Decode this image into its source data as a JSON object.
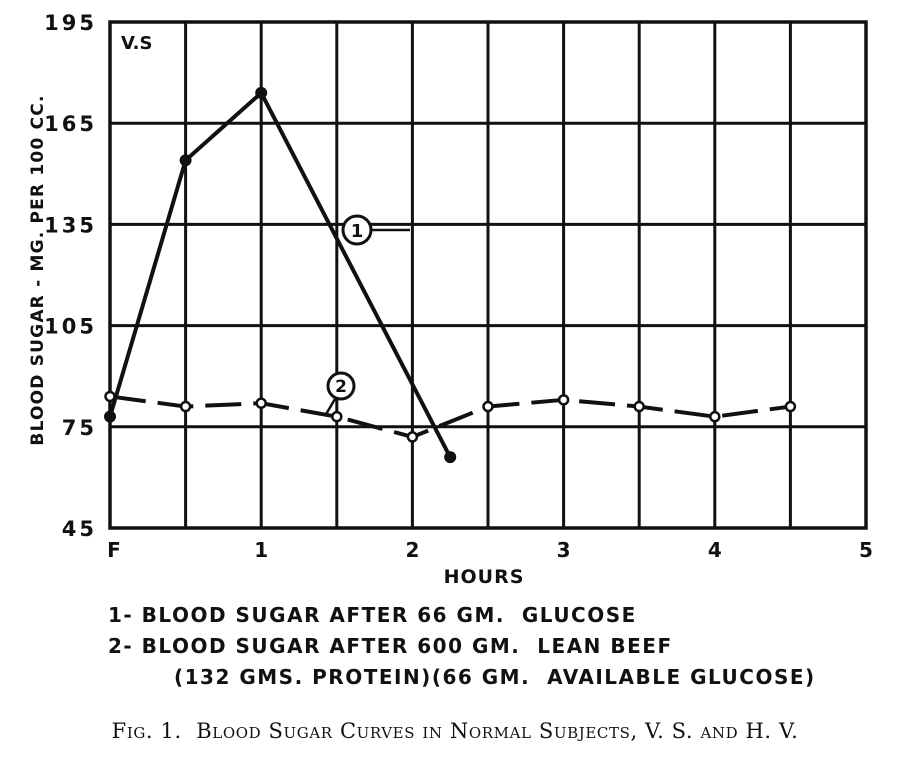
{
  "chart_data": {
    "type": "line",
    "panel_label": "V.S",
    "xlabel": "HOURS",
    "ylabel": "BLOOD SUGAR - MG. PER 100 CC.",
    "x_tick_labels": [
      "F",
      "1",
      "2",
      "3",
      "4",
      "5"
    ],
    "x_ticks": [
      0,
      1,
      2,
      3,
      4,
      5
    ],
    "xlim": [
      0,
      5
    ],
    "y_tick_labels": [
      "195",
      "165",
      "135",
      "105",
      "75",
      "45"
    ],
    "y_ticks": [
      195,
      165,
      135,
      105,
      75,
      45
    ],
    "ylim": [
      45,
      195
    ],
    "grid": true,
    "series": [
      {
        "tag": "1",
        "style": "solid",
        "marker": "filled",
        "x": [
          0,
          0.5,
          1,
          2.25
        ],
        "y": [
          78,
          154,
          174,
          66
        ]
      },
      {
        "tag": "2",
        "style": "dashed",
        "marker": "open",
        "x": [
          0,
          0.5,
          1,
          1.5,
          2,
          2.5,
          3,
          3.5,
          4,
          4.5
        ],
        "y": [
          84,
          81,
          82,
          78,
          72,
          81,
          83,
          81,
          78,
          81
        ]
      }
    ],
    "legend": [
      "1- BLOOD SUGAR AFTER 66 GM.  GLUCOSE",
      "2- BLOOD SUGAR AFTER 600 GM.  LEAN BEEF",
      "(132 GMS. PROTEIN)(66 GM.  AVAILABLE GLUCOSE)"
    ],
    "caption": "Fig. 1.  Blood Sugar Curves in Normal Subjects, V. S. and H. V."
  },
  "colors": {
    "ink": "#111111",
    "background": "#ffffff"
  }
}
